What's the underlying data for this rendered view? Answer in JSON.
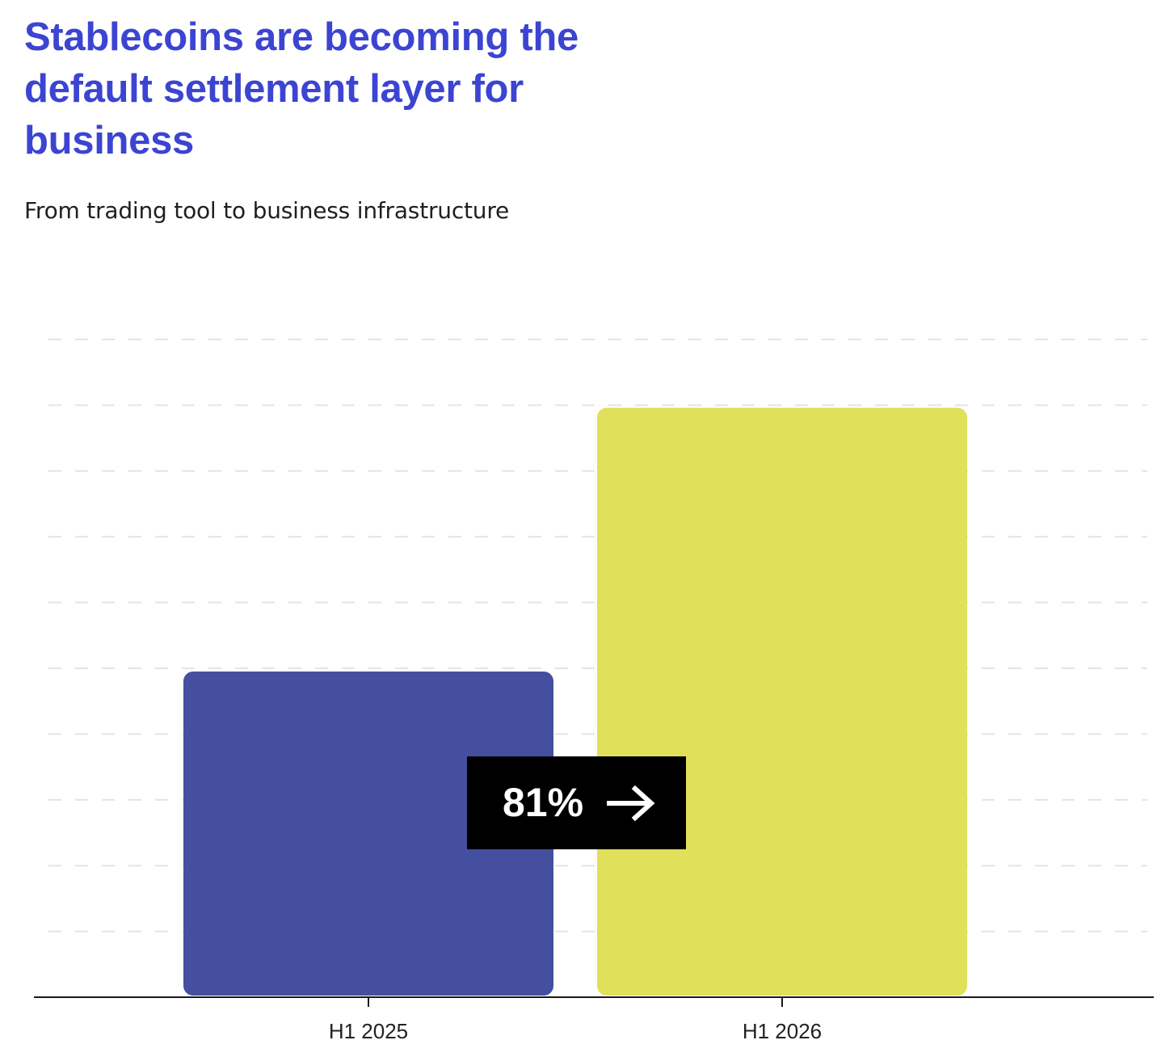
{
  "header": {
    "title": "Stablecoins are becoming the default settlement layer for business",
    "subtitle": "From trading tool to business infrastructure"
  },
  "colors": {
    "title": "#3c44d2",
    "bar_2025": "#454fa0",
    "bar_2026": "#e0e05a",
    "callout_bg": "#000000",
    "axis": "#1a1a1a",
    "grid": "#e4e4e4"
  },
  "callout": {
    "text": "81%",
    "icon": "arrow-right-icon"
  },
  "chart_data": {
    "type": "bar",
    "categories": [
      "H1 2025",
      "H1 2026"
    ],
    "values": [
      100,
      181
    ],
    "ylim": [
      0,
      202
    ],
    "grid": true,
    "gridline_count": 10,
    "bar_colors": [
      "#454fa0",
      "#e0e05a"
    ],
    "annotations": [
      "81%"
    ]
  }
}
